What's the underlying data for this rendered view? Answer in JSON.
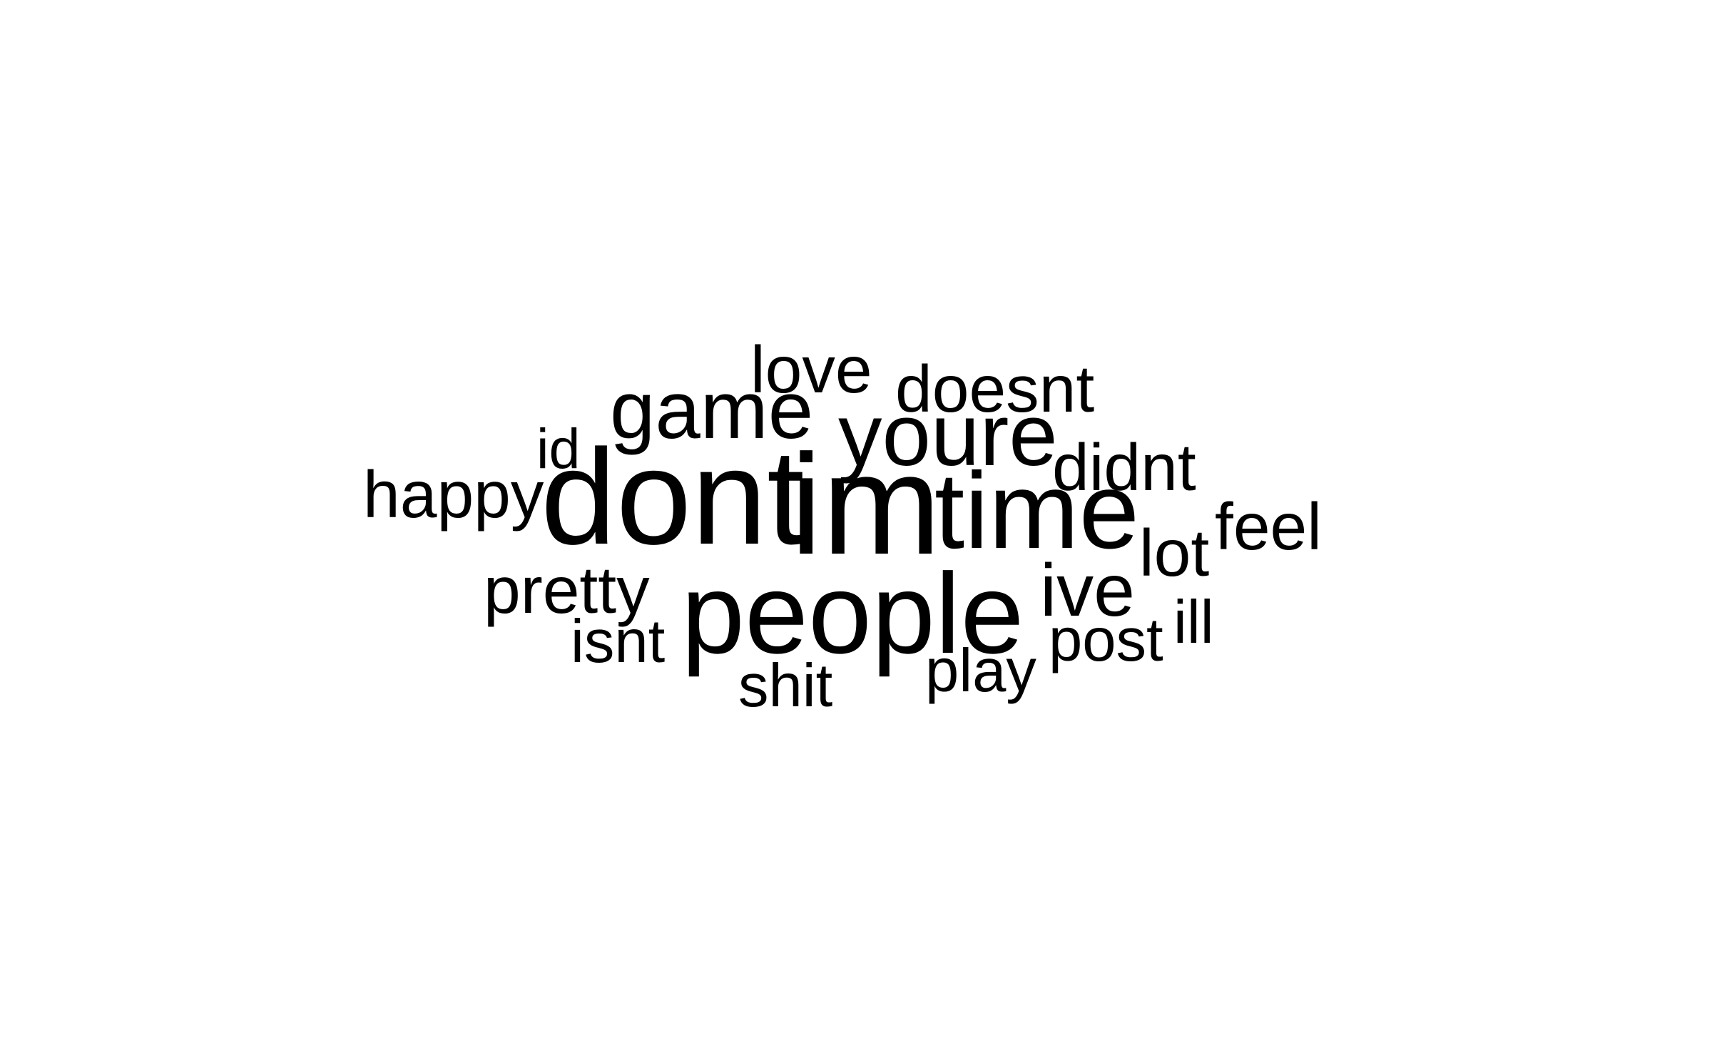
{
  "words": {
    "dont": "dont",
    "im": "im",
    "time": "time",
    "people": "people",
    "youre": "youre",
    "game": "game",
    "doesnt": "doesnt",
    "didnt": "didnt",
    "love": "love",
    "ive": "ive",
    "happy": "happy",
    "lot": "lot",
    "feel": "feel",
    "pretty": "pretty",
    "id": "id",
    "post": "post",
    "isnt": "isnt",
    "ill": "ill",
    "play": "play",
    "shit": "shit"
  },
  "colors": {
    "text": "#000000",
    "background": "#ffffff"
  }
}
